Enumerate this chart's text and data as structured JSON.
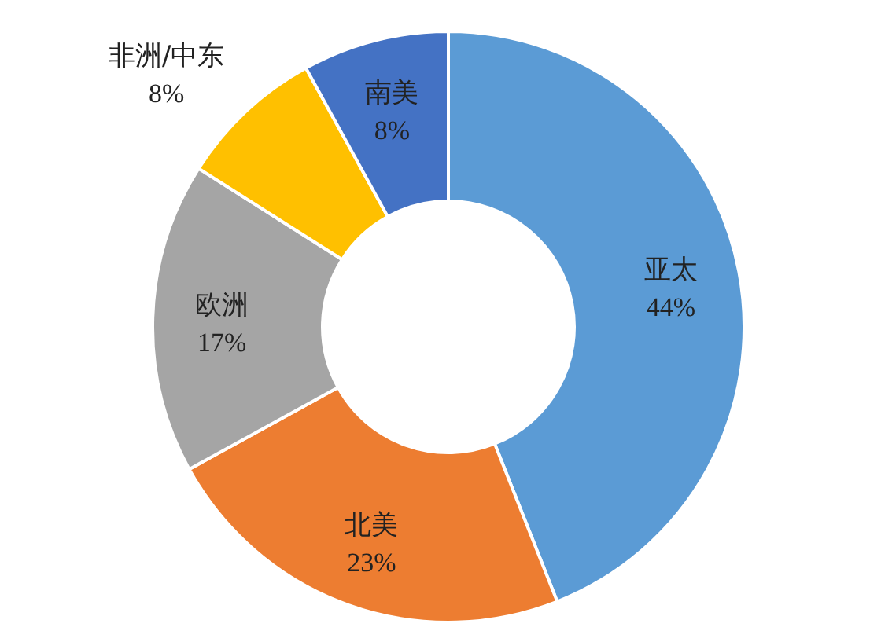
{
  "chart_data": {
    "type": "donut",
    "categories": [
      "亚太",
      "北美",
      "欧洲",
      "非洲/中东",
      "南美"
    ],
    "values": [
      44,
      23,
      17,
      8,
      8
    ],
    "colors": [
      "#5b9bd5",
      "#ed7d31",
      "#a5a5a5",
      "#ffc000",
      "#4472c4"
    ],
    "value_labels": [
      "44%",
      "23%",
      "17%",
      "8%",
      "8%"
    ]
  }
}
